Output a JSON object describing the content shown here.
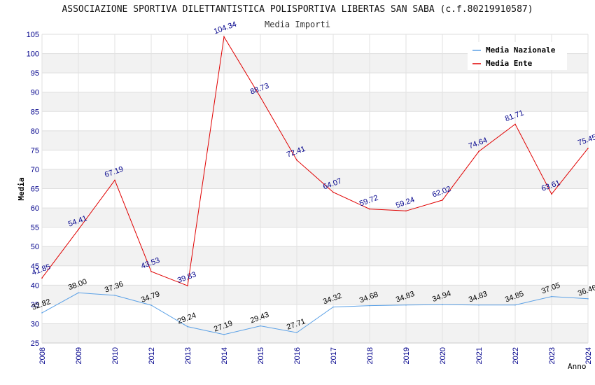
{
  "chart_data": {
    "type": "line",
    "title": "ASSOCIAZIONE SPORTIVA DILETTANTISTICA POLISPORTIVA LIBERTAS SAN SABA (c.f.80219910587)",
    "subtitle": "Media Importi",
    "xlabel": "Anno",
    "ylabel": "Media",
    "categories": [
      "2008",
      "2009",
      "2010",
      "2012",
      "2013",
      "2014",
      "2015",
      "2016",
      "2017",
      "2018",
      "2019",
      "2020",
      "2021",
      "2022",
      "2023",
      "2024"
    ],
    "ylim": [
      25,
      105
    ],
    "yticks": [
      25,
      30,
      35,
      40,
      45,
      50,
      55,
      60,
      65,
      70,
      75,
      80,
      85,
      90,
      95,
      100,
      105
    ],
    "grid": true,
    "legend_position": "top-right",
    "series": [
      {
        "name": "Media Nazionale",
        "color": "#5aa0e6",
        "values": [
          32.82,
          38.0,
          37.36,
          34.79,
          29.24,
          27.19,
          29.43,
          27.71,
          34.32,
          34.68,
          34.83,
          34.94,
          34.83,
          34.85,
          37.05,
          36.46
        ],
        "labels": [
          "32.82",
          "38.00",
          "37.36",
          "34.79",
          "29.24",
          "27.19",
          "29.43",
          "27.71",
          "34.32",
          "34.68",
          "34.83",
          "34.94",
          "34.83",
          "34.85",
          "37.05",
          "36.46"
        ]
      },
      {
        "name": "Media Ente",
        "color": "#e00000",
        "values": [
          41.85,
          54.41,
          67.19,
          43.53,
          39.83,
          104.34,
          88.73,
          72.41,
          64.07,
          59.72,
          59.24,
          62.02,
          74.64,
          81.71,
          63.61,
          75.45
        ],
        "labels": [
          "41.85",
          "54.41",
          "67.19",
          "43.53",
          "39.83",
          "104.34",
          "88.73",
          "72.41",
          "64.07",
          "59.72",
          "59.24",
          "62.02",
          "74.64",
          "81.71",
          "63.61",
          "75.45"
        ]
      }
    ]
  }
}
